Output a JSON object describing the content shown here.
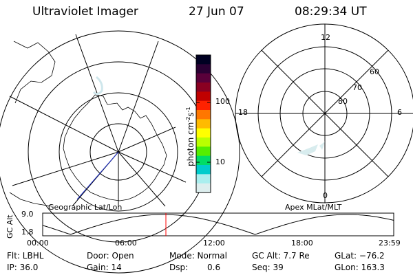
{
  "header": {
    "title": "Ultraviolet Imager",
    "date": "27 Jun 07",
    "time": "08:29:34 UT"
  },
  "colorbar": {
    "unit": "photon cm",
    "unit_sup1": "-2",
    "unit_mid": "s",
    "unit_sup2": "-1",
    "ticks": [
      "100",
      "10"
    ],
    "colors": [
      "#000022",
      "#2a0033",
      "#5a003a",
      "#8a0022",
      "#c00000",
      "#ff2200",
      "#ff7700",
      "#ffbb00",
      "#ffff00",
      "#bbff00",
      "#55ee00",
      "#00dd66",
      "#00cccc",
      "#aaeeee",
      "#ddeeee"
    ]
  },
  "left_map": {
    "caption": "Geographic Lat/Lon"
  },
  "right_map": {
    "caption": "Apex MLat/MLT",
    "mlt_labels": [
      "12",
      "18",
      "6",
      "0"
    ],
    "lat_labels": [
      "60",
      "70",
      "80"
    ]
  },
  "timeline": {
    "ylabel": "GC Alt",
    "yticks": [
      "9.0",
      "1.8"
    ],
    "xticks": [
      "00:00",
      "06:00",
      "12:00",
      "18:00",
      "23:59"
    ],
    "marker_color": "#ff0000"
  },
  "info": {
    "filter": "Flt: LBHL",
    "ip": "IP: 36.0",
    "door": "Door: Open",
    "gain": "Gain: 14",
    "mode": "Mode: Normal",
    "dsp_label": "Dsp:",
    "dsp_value": "0.6",
    "gc_alt": "GC Alt: 7.7 Re",
    "seq": "Seq: 39",
    "glat": "GLat: −76.2",
    "glon": "GLon: 163.3"
  }
}
